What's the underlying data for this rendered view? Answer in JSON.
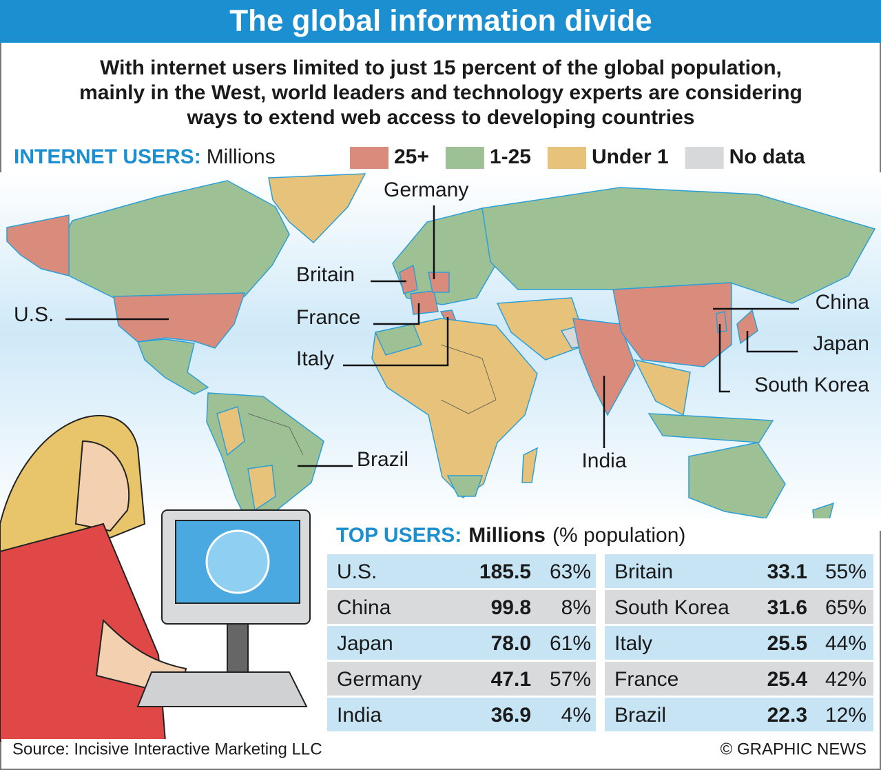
{
  "header": {
    "title": "The global information divide"
  },
  "subtitle": [
    "With internet users limited to just 15 percent of the global population,",
    "mainly in the West, world leaders and technology experts are considering",
    "ways to extend web access to developing countries"
  ],
  "legend": {
    "title": "INTERNET USERS:",
    "unit": "Millions",
    "items": [
      {
        "label": "25+",
        "color": "#d98b7c"
      },
      {
        "label": "1-25",
        "color": "#9dc194"
      },
      {
        "label": "Under 1",
        "color": "#e6c27a"
      },
      {
        "label": "No data",
        "color": "#d6d8da"
      }
    ]
  },
  "map": {
    "labels": [
      "Germany",
      "Britain",
      "France",
      "Italy",
      "U.S.",
      "China",
      "Japan",
      "South Korea",
      "Brazil",
      "India"
    ]
  },
  "table": {
    "title": "TOP USERS:",
    "unit": "Millions",
    "note": "(% population)",
    "rows": [
      [
        "U.S.",
        "185.5",
        "63%"
      ],
      [
        "China",
        "99.8",
        "8%"
      ],
      [
        "Japan",
        "78.0",
        "61%"
      ],
      [
        "Germany",
        "47.1",
        "57%"
      ],
      [
        "India",
        "36.9",
        "4%"
      ],
      [
        "Britain",
        "33.1",
        "55%"
      ],
      [
        "South Korea",
        "31.6",
        "65%"
      ],
      [
        "Italy",
        "25.5",
        "44%"
      ],
      [
        "France",
        "25.4",
        "42%"
      ],
      [
        "Brazil",
        "22.3",
        "12%"
      ]
    ]
  },
  "footer": {
    "source": "Source: Incisive Interactive Marketing LLC",
    "credit": "© GRAPHIC NEWS"
  }
}
